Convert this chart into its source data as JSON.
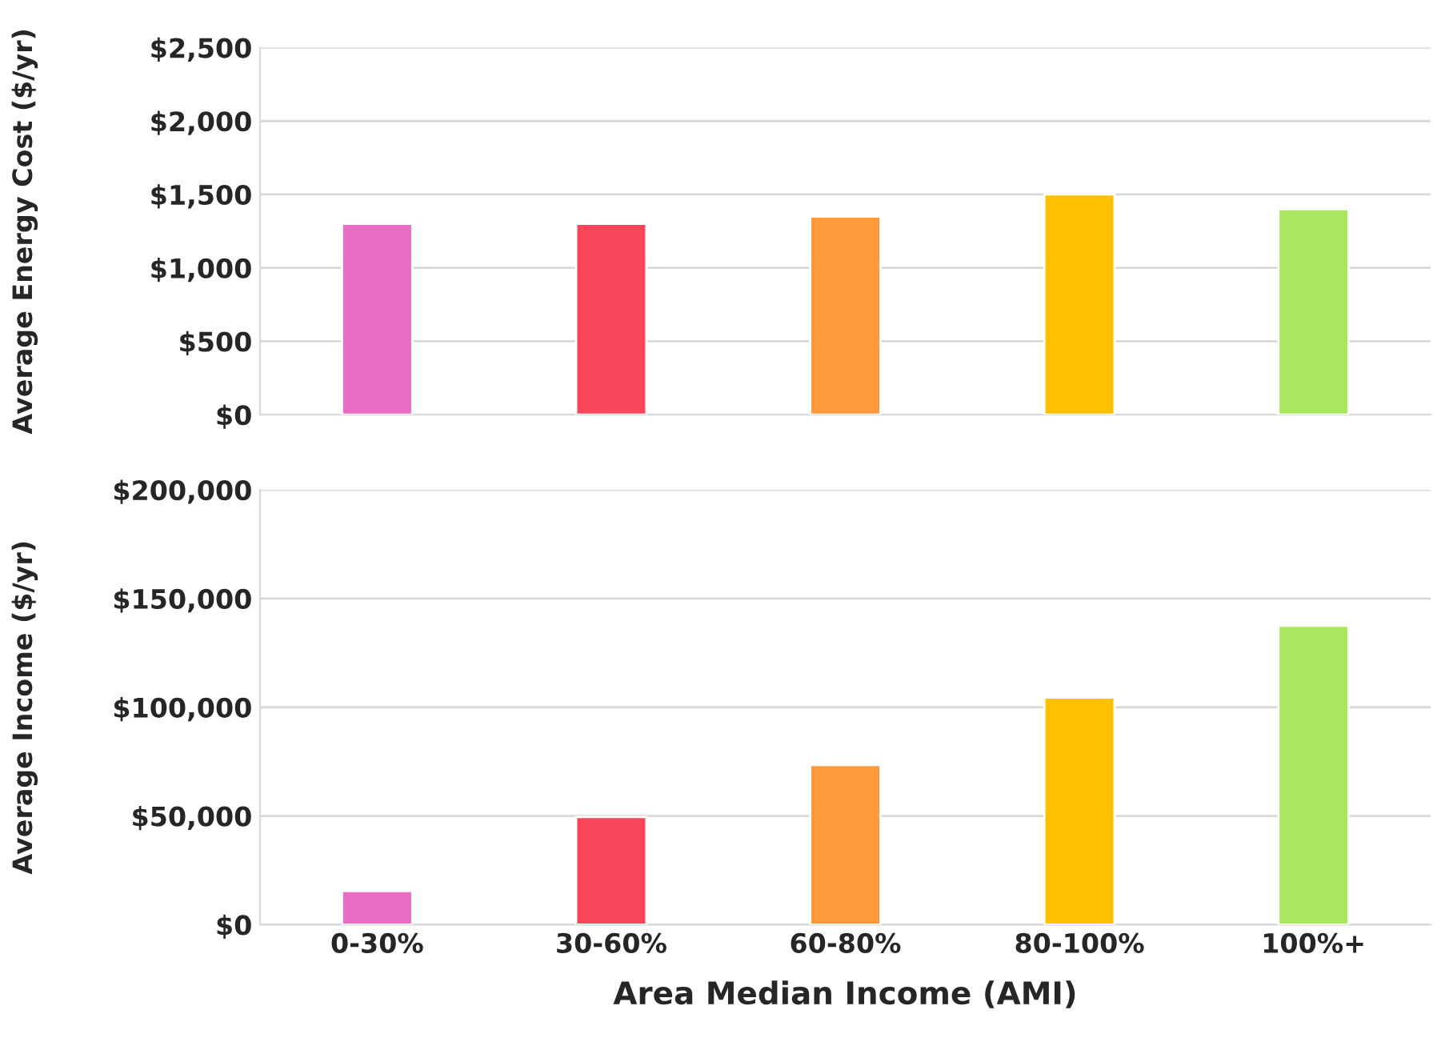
{
  "chart_data": [
    {
      "type": "bar",
      "ylabel": "Average Energy Cost ($/yr)",
      "categories": [
        null,
        null,
        null,
        null,
        null
      ],
      "values": [
        1300,
        1300,
        1350,
        1500,
        1400
      ],
      "colors": [
        "#ea6bc6",
        "#f9465a",
        "#ff9a3c",
        "#ffc000",
        "#a9e85e"
      ],
      "ylim": [
        0,
        2500
      ],
      "yticks": [
        {
          "value": 0,
          "label": "$0"
        },
        {
          "value": 500,
          "label": "$500"
        },
        {
          "value": 1000,
          "label": "$1,000"
        },
        {
          "value": 1500,
          "label": "$1,500"
        },
        {
          "value": 2000,
          "label": "$2,000"
        },
        {
          "value": 2500,
          "label": "$2,500"
        }
      ],
      "grid": "y",
      "tick_labels": "y"
    },
    {
      "type": "bar",
      "xlabel": "Area Median Income (AMI)",
      "ylabel": "Average Income ($/yr)",
      "categories": [
        "0-30%",
        "30-60%",
        "60-80%",
        "80-100%",
        "100%+"
      ],
      "values": [
        15500,
        49500,
        73500,
        104500,
        137500
      ],
      "colors": [
        "#ea6bc6",
        "#f9465a",
        "#ff9a3c",
        "#ffc000",
        "#a9e85e"
      ],
      "ylim": [
        0,
        200000
      ],
      "yticks": [
        {
          "value": 0,
          "label": "$0"
        },
        {
          "value": 50000,
          "label": "$50,000"
        },
        {
          "value": 100000,
          "label": "$100,000"
        },
        {
          "value": 150000,
          "label": "$150,000"
        },
        {
          "value": 200000,
          "label": "$200,000"
        }
      ],
      "grid": "y"
    }
  ]
}
